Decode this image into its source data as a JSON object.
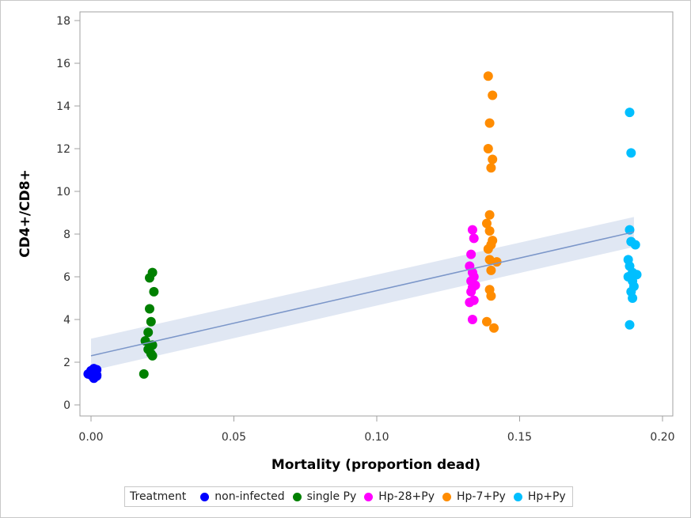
{
  "chart_data": {
    "type": "scatter",
    "title": "",
    "xlabel": "Mortality (proportion dead)",
    "ylabel": "CD4+/CD8+",
    "xlim": [
      -0.003,
      0.203
    ],
    "ylim": [
      -0.5,
      18.5
    ],
    "xticks": [
      0.0,
      0.05,
      0.1,
      0.15,
      0.2
    ],
    "xtick_labels": [
      "0.00",
      "0.05",
      "0.10",
      "0.15",
      "0.20"
    ],
    "yticks": [
      0,
      2,
      4,
      6,
      8,
      10,
      12,
      14,
      16,
      18
    ],
    "ytick_labels": [
      "0",
      "2",
      "4",
      "6",
      "8",
      "10",
      "12",
      "14",
      "16",
      "18"
    ],
    "grid": false,
    "legend": {
      "title": "Treatment",
      "placement": "bottom"
    },
    "regression": {
      "x_range": [
        0.0,
        0.19
      ],
      "fit": [
        2.3,
        8.1
      ],
      "ci_lower": [
        1.6,
        7.4
      ],
      "ci_upper": [
        3.1,
        8.8
      ],
      "color": "#7b96c9",
      "band_color": "#dbe3f1"
    },
    "series": [
      {
        "name": "non-infected",
        "color": "#0000ff",
        "x": [
          0.0,
          0.001,
          0.0,
          0.002,
          0.001,
          -0.001,
          0.0,
          0.002,
          0.001,
          0.0,
          0.001,
          0.002
        ],
        "y": [
          1.6,
          1.5,
          1.4,
          1.35,
          1.3,
          1.45,
          1.55,
          1.65,
          1.25,
          1.5,
          1.7,
          1.4
        ]
      },
      {
        "name": "single Py",
        "color": "#008000",
        "x": [
          0.0215,
          0.0205,
          0.022,
          0.0205,
          0.021,
          0.02,
          0.019,
          0.0215,
          0.02,
          0.021,
          0.0215,
          0.0185
        ],
        "y": [
          6.2,
          5.95,
          5.3,
          4.5,
          3.9,
          3.4,
          3.0,
          2.8,
          2.6,
          2.4,
          2.3,
          1.45
        ]
      },
      {
        "name": "Hp-28+Py",
        "color": "#ff00ff",
        "x": [
          0.1335,
          0.134,
          0.133,
          0.1325,
          0.1335,
          0.134,
          0.133,
          0.1345,
          0.1335,
          0.133,
          0.134,
          0.1325,
          0.1335
        ],
        "y": [
          8.2,
          7.8,
          7.05,
          6.5,
          6.2,
          6.0,
          5.8,
          5.6,
          5.5,
          5.3,
          4.9,
          4.8,
          4.0
        ]
      },
      {
        "name": "Hp-7+Py",
        "color": "#ff8c00",
        "x": [
          0.139,
          0.1405,
          0.1395,
          0.139,
          0.1405,
          0.14,
          0.1395,
          0.1385,
          0.1395,
          0.1405,
          0.14,
          0.139,
          0.142,
          0.1395,
          0.14,
          0.1395,
          0.14,
          0.1385,
          0.141
        ],
        "y": [
          15.4,
          14.5,
          13.2,
          12.0,
          11.5,
          11.1,
          8.9,
          8.5,
          8.15,
          7.7,
          7.5,
          7.3,
          6.7,
          6.8,
          6.3,
          5.4,
          5.1,
          3.9,
          3.6
        ]
      },
      {
        "name": "Hp+Py",
        "color": "#00bfff",
        "x": [
          0.1885,
          0.189,
          0.1885,
          0.189,
          0.1905,
          0.188,
          0.1885,
          0.1895,
          0.191,
          0.188,
          0.1895,
          0.19,
          0.189,
          0.1895,
          0.1885
        ],
        "y": [
          13.7,
          11.8,
          8.2,
          7.65,
          7.5,
          6.8,
          6.5,
          6.2,
          6.1,
          6.0,
          5.8,
          5.55,
          5.3,
          5.0,
          3.75
        ]
      }
    ]
  }
}
